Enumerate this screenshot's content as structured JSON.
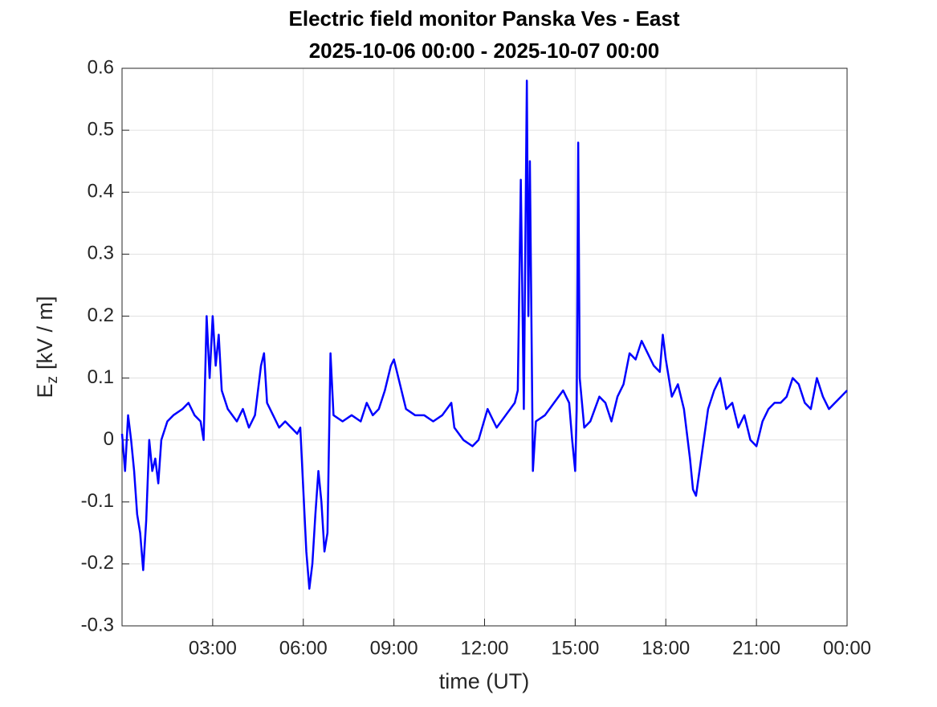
{
  "chart_data": {
    "type": "line",
    "title": "Electric field monitor Panska Ves - East",
    "subtitle": "2025-10-06 00:00 - 2025-10-07 00:00",
    "x_label": "time (UT)",
    "y_label_parts": {
      "base": "E",
      "subscript": "z",
      "rest": "[kV / m]"
    },
    "xlim": [
      0,
      24
    ],
    "xticks": [
      {
        "value": 3,
        "label": "03:00"
      },
      {
        "value": 6,
        "label": "06:00"
      },
      {
        "value": 9,
        "label": "09:00"
      },
      {
        "value": 12,
        "label": "12:00"
      },
      {
        "value": 15,
        "label": "15:00"
      },
      {
        "value": 18,
        "label": "18:00"
      },
      {
        "value": 21,
        "label": "21:00"
      },
      {
        "value": 24,
        "label": "00:00"
      }
    ],
    "ylim": [
      -0.3,
      0.6
    ],
    "yticks": [
      -0.3,
      -0.2,
      -0.1,
      0,
      0.1,
      0.2,
      0.3,
      0.4,
      0.5,
      0.6
    ],
    "grid": true,
    "series": [
      {
        "color": "#0000ff",
        "x": [
          0.0,
          0.1,
          0.2,
          0.3,
          0.4,
          0.5,
          0.6,
          0.7,
          0.8,
          0.9,
          1.0,
          1.1,
          1.2,
          1.3,
          1.5,
          1.7,
          2.0,
          2.2,
          2.4,
          2.6,
          2.7,
          2.8,
          2.9,
          3.0,
          3.1,
          3.2,
          3.3,
          3.5,
          3.8,
          4.0,
          4.2,
          4.4,
          4.6,
          4.7,
          4.8,
          5.0,
          5.2,
          5.4,
          5.6,
          5.8,
          5.9,
          6.0,
          6.1,
          6.2,
          6.3,
          6.4,
          6.5,
          6.6,
          6.7,
          6.8,
          6.9,
          7.0,
          7.3,
          7.6,
          7.9,
          8.1,
          8.3,
          8.5,
          8.7,
          8.9,
          9.0,
          9.2,
          9.4,
          9.7,
          10.0,
          10.3,
          10.6,
          10.9,
          11.0,
          11.3,
          11.6,
          11.8,
          12.1,
          12.4,
          12.7,
          13.0,
          13.1,
          13.2,
          13.3,
          13.4,
          13.45,
          13.5,
          13.6,
          13.7,
          14.0,
          14.3,
          14.6,
          14.8,
          14.9,
          15.0,
          15.05,
          15.1,
          15.15,
          15.3,
          15.5,
          15.8,
          16.0,
          16.2,
          16.4,
          16.6,
          16.8,
          17.0,
          17.2,
          17.4,
          17.6,
          17.8,
          17.9,
          18.0,
          18.2,
          18.4,
          18.6,
          18.8,
          18.9,
          19.0,
          19.2,
          19.4,
          19.6,
          19.8,
          20.0,
          20.2,
          20.4,
          20.6,
          20.8,
          21.0,
          21.2,
          21.4,
          21.6,
          21.8,
          22.0,
          22.2,
          22.4,
          22.6,
          22.8,
          23.0,
          23.2,
          23.4,
          23.6,
          23.8,
          24.0
        ],
        "values": [
          0.01,
          -0.05,
          0.04,
          0.0,
          -0.05,
          -0.12,
          -0.15,
          -0.21,
          -0.13,
          0.0,
          -0.05,
          -0.03,
          -0.07,
          0.0,
          0.03,
          0.04,
          0.05,
          0.06,
          0.04,
          0.03,
          0.0,
          0.2,
          0.1,
          0.2,
          0.12,
          0.17,
          0.08,
          0.05,
          0.03,
          0.05,
          0.02,
          0.04,
          0.12,
          0.14,
          0.06,
          0.04,
          0.02,
          0.03,
          0.02,
          0.01,
          0.02,
          -0.08,
          -0.18,
          -0.24,
          -0.2,
          -0.12,
          -0.05,
          -0.1,
          -0.18,
          -0.15,
          0.14,
          0.04,
          0.03,
          0.04,
          0.03,
          0.06,
          0.04,
          0.05,
          0.08,
          0.12,
          0.13,
          0.09,
          0.05,
          0.04,
          0.04,
          0.03,
          0.04,
          0.06,
          0.02,
          0.0,
          -0.01,
          0.0,
          0.05,
          0.02,
          0.04,
          0.06,
          0.08,
          0.42,
          0.05,
          0.58,
          0.2,
          0.45,
          -0.05,
          0.03,
          0.04,
          0.06,
          0.08,
          0.06,
          0.0,
          -0.05,
          0.05,
          0.48,
          0.1,
          0.02,
          0.03,
          0.07,
          0.06,
          0.03,
          0.07,
          0.09,
          0.14,
          0.13,
          0.16,
          0.14,
          0.12,
          0.11,
          0.17,
          0.13,
          0.07,
          0.09,
          0.05,
          -0.03,
          -0.08,
          -0.09,
          -0.02,
          0.05,
          0.08,
          0.1,
          0.05,
          0.06,
          0.02,
          0.04,
          0.0,
          -0.01,
          0.03,
          0.05,
          0.06,
          0.06,
          0.07,
          0.1,
          0.09,
          0.06,
          0.05,
          0.1,
          0.07,
          0.05,
          0.06,
          0.07,
          0.08
        ]
      }
    ]
  }
}
